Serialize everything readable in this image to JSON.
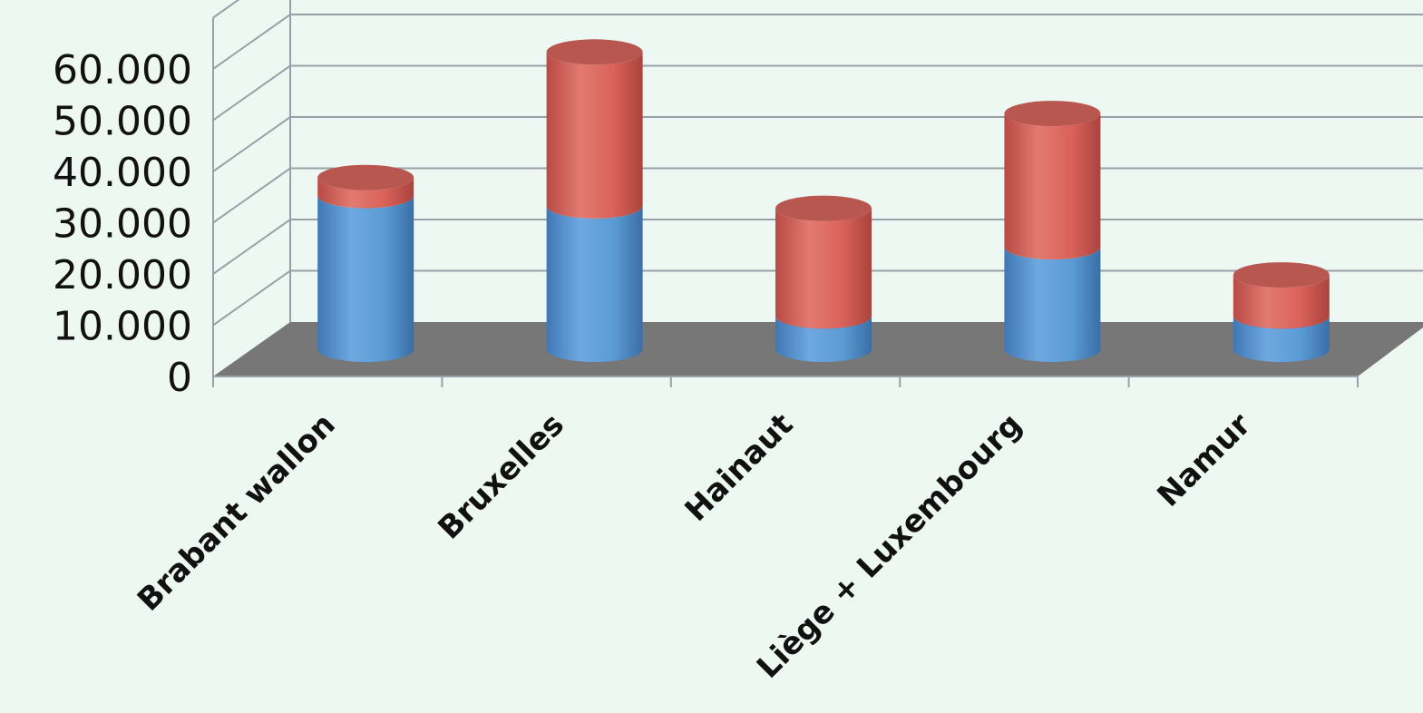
{
  "chart_data": {
    "type": "bar",
    "stacked": true,
    "style": "3d-cylinder",
    "categories": [
      "Brabant wallon",
      "Bruxelles",
      "Hainaut",
      "Liège + Luxembourg",
      "Namur"
    ],
    "series": [
      {
        "values": [
          30000,
          28000,
          6500,
          20000,
          6500
        ]
      },
      {
        "values": [
          3500,
          30000,
          21000,
          26000,
          8000
        ]
      }
    ],
    "y_ticks": [
      "0",
      "10.000",
      "20.000",
      "30.000",
      "40.000",
      "50.000",
      "60.000"
    ],
    "ylim": [
      0,
      70000
    ],
    "grid": true,
    "legend": "none",
    "colors": {
      "series": [
        "#5b9bd5",
        "#d9625a"
      ],
      "floor": "#777777",
      "grid": "#9aa0a8",
      "background": "#eef8f2"
    }
  }
}
